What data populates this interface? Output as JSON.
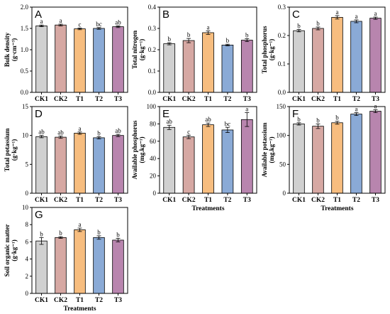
{
  "categories": [
    "CK1",
    "CK2",
    "T1",
    "T2",
    "T3"
  ],
  "colors": [
    "#d0d0d0",
    "#d6a8a3",
    "#f7bd7f",
    "#8aaad6",
    "#b885ae"
  ],
  "chart_data": [
    {
      "type": "bar",
      "panel": "A",
      "categories": [
        "CK1",
        "CK2",
        "T1",
        "T2",
        "T3"
      ],
      "values": [
        1.56,
        1.58,
        1.49,
        1.5,
        1.54
      ],
      "errors": [
        0.02,
        0.02,
        0.02,
        0.02,
        0.02
      ],
      "letters": [
        "a",
        "a",
        "c",
        "bc",
        "ab"
      ],
      "ylabel": "Bulk density",
      "yunit": "(g·cm⁻³)",
      "xlabel": "",
      "ylim": [
        0,
        2.0
      ],
      "yticks": [
        "0.0",
        "0.5",
        "1.0",
        "1.5",
        "2.0"
      ]
    },
    {
      "type": "bar",
      "panel": "B",
      "categories": [
        "CK1",
        "CK2",
        "T1",
        "T2",
        "T3"
      ],
      "values": [
        0.228,
        0.243,
        0.28,
        0.222,
        0.245
      ],
      "errors": [
        0.005,
        0.01,
        0.008,
        0.004,
        0.007
      ],
      "letters": [
        "b",
        "b",
        "a",
        "b",
        "b"
      ],
      "ylabel": "Total nitrogen",
      "yunit": "(g·kg⁻¹)",
      "xlabel": "",
      "ylim": [
        0,
        0.4
      ],
      "yticks": [
        "0.0",
        "0.1",
        "0.2",
        "0.3",
        "0.4"
      ]
    },
    {
      "type": "bar",
      "panel": "C",
      "categories": [
        "CK1",
        "CK2",
        "T1",
        "T2",
        "T3"
      ],
      "values": [
        0.217,
        0.225,
        0.264,
        0.25,
        0.261
      ],
      "errors": [
        0.004,
        0.005,
        0.006,
        0.005,
        0.004
      ],
      "letters": [
        "b",
        "b",
        "a",
        "a",
        "a"
      ],
      "ylabel": "Total phosphorus",
      "yunit": "(g·kg⁻¹)",
      "xlabel": "",
      "ylim": [
        0,
        0.3
      ],
      "yticks": [
        "0.0",
        "0.1",
        "0.2",
        "0.3"
      ]
    },
    {
      "type": "bar",
      "panel": "D",
      "categories": [
        "CK1",
        "CK2",
        "T1",
        "T2",
        "T3"
      ],
      "values": [
        9.8,
        9.7,
        10.4,
        9.6,
        10.0
      ],
      "errors": [
        0.2,
        0.2,
        0.2,
        0.2,
        0.2
      ],
      "letters": [
        "ab",
        "ab",
        "a",
        "b",
        "ab"
      ],
      "ylabel": "Total potassium",
      "yunit": "(g·kg⁻¹)",
      "xlabel": "",
      "ylim": [
        0,
        15
      ],
      "yticks": [
        "0",
        "5",
        "10",
        "15"
      ]
    },
    {
      "type": "bar",
      "panel": "E",
      "categories": [
        "CK1",
        "CK2",
        "T1",
        "T2",
        "T3"
      ],
      "values": [
        76,
        65,
        79,
        73,
        85
      ],
      "errors": [
        2.5,
        2,
        2,
        3,
        8
      ],
      "letters": [
        "ab",
        "c",
        "ab",
        "bc",
        "a"
      ],
      "ylabel": "Available phosphorus",
      "yunit": "(mg.kg⁻¹)",
      "xlabel": "Treatments",
      "ylim": [
        0,
        100
      ],
      "yticks": [
        "0",
        "20",
        "40",
        "60",
        "80",
        "100"
      ]
    },
    {
      "type": "bar",
      "panel": "F",
      "categories": [
        "CK1",
        "CK2",
        "T1",
        "T2",
        "T3"
      ],
      "values": [
        120,
        116,
        122,
        137,
        142
      ],
      "errors": [
        2,
        4,
        2.5,
        2.5,
        2.5
      ],
      "letters": [
        "b",
        "b",
        "b",
        "a",
        "a"
      ],
      "ylabel": "Available potassium",
      "yunit": "(mg.kg⁻¹)",
      "xlabel": "Treatments",
      "ylim": [
        0,
        150
      ],
      "yticks": [
        "0",
        "50",
        "100",
        "150"
      ]
    },
    {
      "type": "bar",
      "panel": "G",
      "categories": [
        "CK1",
        "CK2",
        "T1",
        "T2",
        "T3"
      ],
      "values": [
        6.1,
        6.5,
        7.4,
        6.5,
        6.2
      ],
      "errors": [
        0.4,
        0.1,
        0.2,
        0.2,
        0.2
      ],
      "letters": [
        "b",
        "b",
        "a",
        "b",
        "b"
      ],
      "ylabel": "Soil organic matter",
      "yunit": "(g·kg⁻¹)",
      "xlabel": "Treatments",
      "ylim": [
        0,
        10
      ],
      "yticks": [
        "0",
        "2",
        "4",
        "6",
        "8",
        "10"
      ]
    }
  ]
}
